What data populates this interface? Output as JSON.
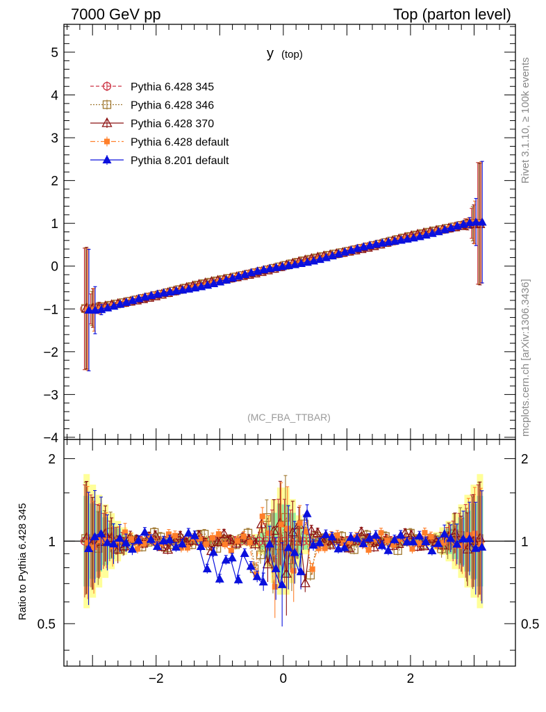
{
  "header": {
    "left": "7000 GeV pp",
    "right": "Top (parton level)"
  },
  "side": {
    "rivet": "Rivet 3.1.10, ≥ 100k events",
    "mcplots": "mcplots.cern.ch [arXiv:1306.3436]"
  },
  "chart_data": [
    {
      "type": "line",
      "title": "y",
      "title_sub": "(top)",
      "watermark": "(MC_FBA_TTBAR)",
      "xlabel": "",
      "ylabel": "",
      "xlim": [
        -3.45,
        3.65
      ],
      "ylim": [
        -4.05,
        5.65
      ],
      "yticks": [
        -4,
        -3,
        -2,
        -1,
        0,
        1,
        2,
        3,
        4,
        5
      ],
      "ytick_labels": [
        "−4",
        "−3",
        "−2",
        "−1",
        "0",
        "1",
        "2",
        "3",
        "4",
        "5"
      ],
      "x_definition": "bin centres from -3.14159 to 3.14159 in 64 bins (edge points have wide error bars)",
      "series": [
        {
          "name": "Pythia 6.428 345",
          "color": "#cc3344",
          "marker": "circle-open",
          "dash": "5,3",
          "shift": 0.0
        },
        {
          "name": "Pythia 6.428 346",
          "color": "#a07830",
          "marker": "square-open",
          "dash": "2,2",
          "shift": 0.0
        },
        {
          "name": "Pythia 6.428 370",
          "color": "#8b1010",
          "marker": "triangle-open",
          "dash": "",
          "shift": 0.0
        },
        {
          "name": "Pythia 6.428 default",
          "color": "#ff7f2a",
          "marker": "square-filled",
          "dash": "7,3,2,3",
          "shift": 0.03
        },
        {
          "name": "Pythia 8.201 default",
          "color": "#0a10dd",
          "marker": "triangle-filled",
          "dash": "",
          "shift": -0.03
        }
      ],
      "curve": {
        "description": "mean value increases from -1.0 at x=-3.14 to +1.0 at x=3.14 (approximately x/pi), flattening near the edges",
        "edge_value_left": -1.0,
        "edge_value_right": 1.0,
        "edge_error": 1.42
      }
    },
    {
      "type": "line",
      "ylabel": "Ratio to Pythia 6.428 345",
      "xlim": [
        -3.45,
        3.65
      ],
      "ylim": [
        0.35,
        2.35
      ],
      "y_scale": "log",
      "xticks": [
        -2,
        0,
        2
      ],
      "xtick_labels": [
        "−2",
        "0",
        "2"
      ],
      "yticks": [
        0.5,
        1,
        2
      ],
      "ytick_labels": [
        "0.5",
        "1",
        "2"
      ],
      "reference_line": 1,
      "bands": [
        {
          "name": "yellow-band",
          "color": "#ffff99"
        },
        {
          "name": "green-band",
          "color": "#99ee99"
        }
      ],
      "series_ratio_notes": "Pythia 8.201 default dips to ~0.75 around x=-1..0; spikes near x=0; values near 1 elsewhere"
    }
  ]
}
